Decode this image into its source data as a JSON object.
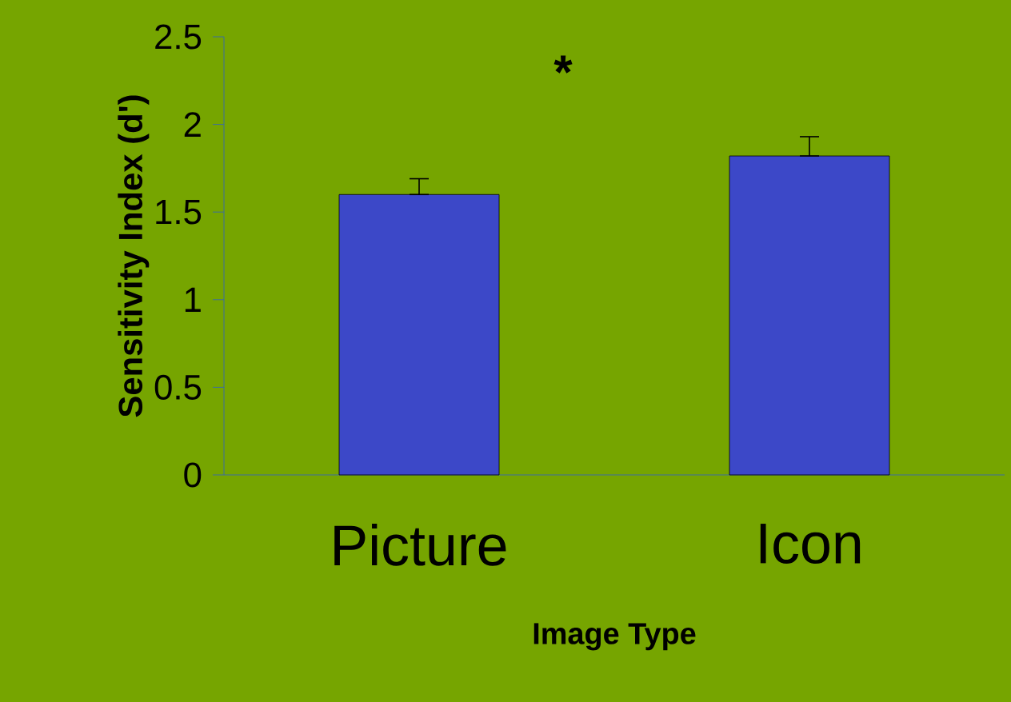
{
  "chart_data": {
    "type": "bar",
    "xlabel": "Image Type",
    "ylabel": "Sensitivity Index (d')",
    "categories": [
      "Picture",
      "Icon"
    ],
    "values": [
      1.6,
      1.82
    ],
    "errors": [
      [
        1.6,
        1.69
      ],
      [
        1.82,
        1.93
      ]
    ],
    "color": "#3c48c8",
    "ylim": [
      0,
      2.5
    ],
    "yticks": [
      0,
      0.5,
      1,
      1.5,
      2,
      2.5
    ],
    "annotations": [
      "*"
    ],
    "grid": false
  }
}
